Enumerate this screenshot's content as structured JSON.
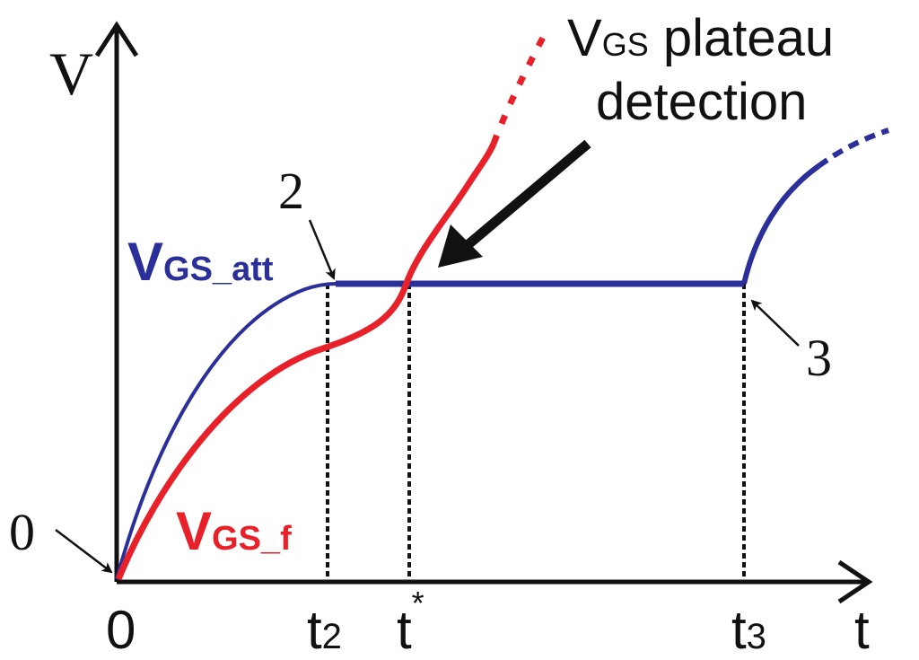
{
  "axes": {
    "y_label": "V",
    "x_label": "t",
    "origin_label": "0"
  },
  "markers": {
    "t2": {
      "main": "t",
      "sub": "2"
    },
    "t_star": {
      "main": "t",
      "sup": "*"
    },
    "t3": {
      "main": "t",
      "sub": "3"
    }
  },
  "points": {
    "p0": "0",
    "p2": "2",
    "p3": "3"
  },
  "curves": {
    "vgs_att": {
      "main": "V",
      "sub": "GS_att",
      "color": "#2a2f9a"
    },
    "vgs_f": {
      "main": "V",
      "sub": "GS_f",
      "color": "#e8202a"
    }
  },
  "annotation": {
    "line1_main": "V",
    "line1_sub": "GS",
    "line1_rest": " plateau",
    "line2": "detection"
  }
}
